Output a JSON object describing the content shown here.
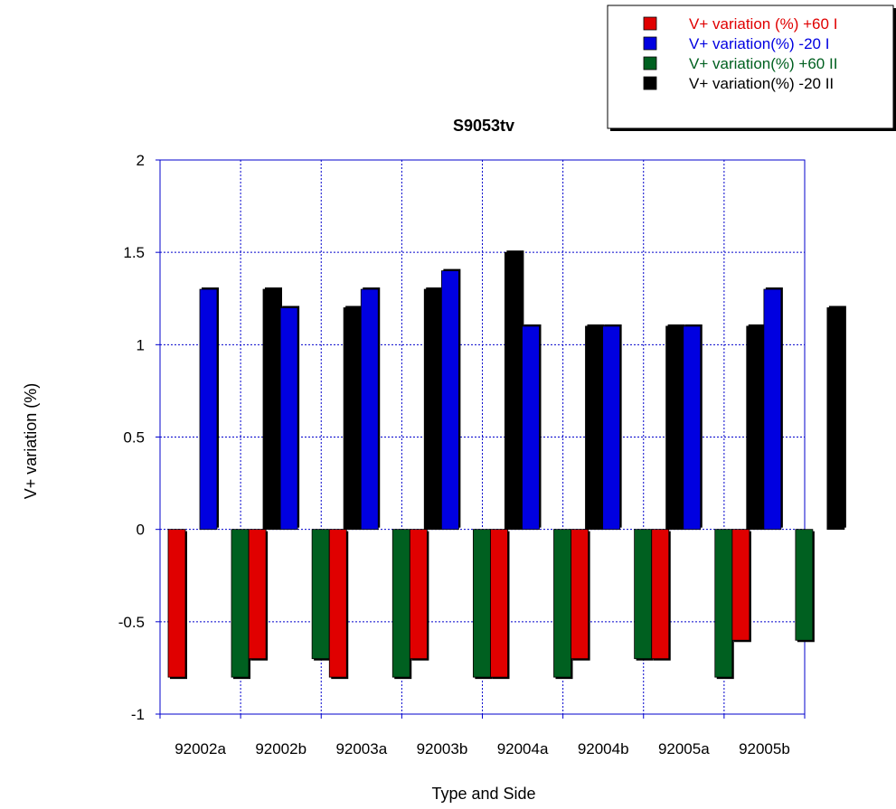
{
  "chart_data": {
    "type": "bar",
    "title": "S9053tv",
    "xlabel": "Type and Side",
    "ylabel": "V+ variation (%)",
    "ylim": [
      -1,
      2
    ],
    "yticks": [
      -1,
      -0.5,
      0,
      0.5,
      1,
      1.5,
      2
    ],
    "ytick_labels": [
      "-1",
      "-0.5",
      "0",
      "0.5",
      "1",
      "1.5",
      "2"
    ],
    "grid": true,
    "legend_position": "top-right",
    "categories": [
      "92002a",
      "92002b",
      "92003a",
      "92003b",
      "92004a",
      "92004b",
      "92005a",
      "92005b"
    ],
    "series": [
      {
        "name": "V+ variation (%) +60 I",
        "color": "#e00000",
        "values": [
          -0.8,
          -0.7,
          -0.8,
          -0.7,
          -0.8,
          -0.7,
          -0.7,
          -0.6
        ]
      },
      {
        "name": "V+ variation(%) -20 I",
        "color": "#0000e0",
        "values": [
          1.3,
          1.2,
          1.3,
          1.4,
          1.1,
          1.1,
          1.1,
          1.3
        ]
      },
      {
        "name": "V+ variation(%) +60 II",
        "color": "#006020",
        "values": [
          -0.8,
          -0.7,
          -0.8,
          -0.8,
          -0.8,
          -0.7,
          -0.8,
          -0.6
        ]
      },
      {
        "name": "V+ variation(%) -20 II",
        "color": "#000000",
        "values": [
          1.3,
          1.2,
          1.3,
          1.5,
          1.1,
          1.1,
          1.1,
          1.2
        ]
      }
    ]
  }
}
